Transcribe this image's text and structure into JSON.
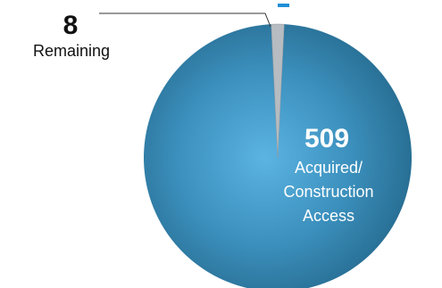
{
  "chart_data": {
    "type": "pie",
    "slices": [
      {
        "label_lines": [
          "Acquired/",
          "Construction",
          "Access"
        ],
        "value": 509,
        "color": "#2e7fa6"
      },
      {
        "label_lines": [
          "Remaining"
        ],
        "value": 8,
        "color": "#b6bcc1"
      }
    ],
    "title": "",
    "legend": "none"
  },
  "colors": {
    "accent_dash": "#1f8fd6"
  }
}
